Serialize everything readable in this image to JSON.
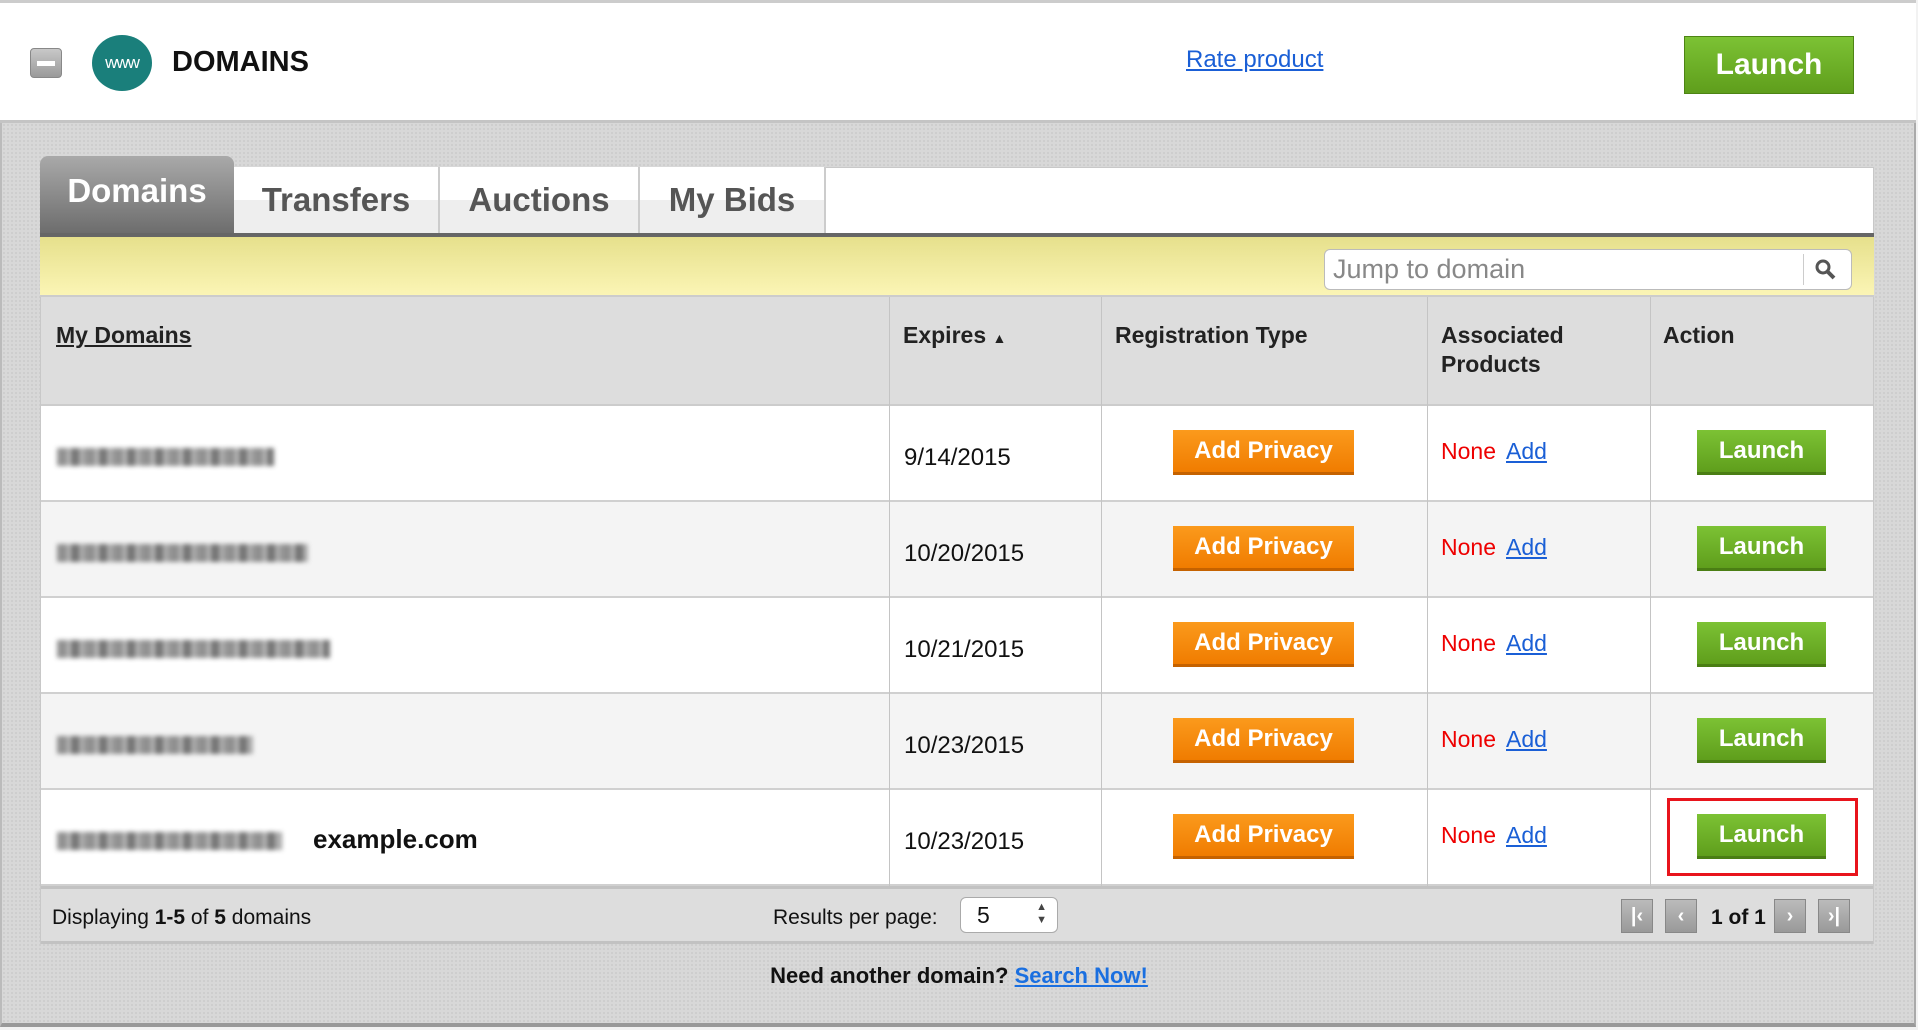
{
  "header": {
    "title": "DOMAINS",
    "logo_text": "www",
    "rate_link": "Rate product",
    "launch_label": "Launch"
  },
  "tabs": [
    {
      "label": "Domains",
      "active": true
    },
    {
      "label": "Transfers"
    },
    {
      "label": "Auctions"
    },
    {
      "label": "My Bids"
    }
  ],
  "search": {
    "placeholder": "Jump to domain"
  },
  "table": {
    "columns": [
      "My Domains",
      "Expires",
      "Registration Type",
      "Associated Products",
      "Action"
    ],
    "sort": {
      "column": "Expires",
      "direction": "ascending"
    },
    "rows": [
      {
        "domain": "",
        "expires": "9/14/2015",
        "reg_button": "Add Privacy",
        "products": "None",
        "add": "Add",
        "action": "Launch"
      },
      {
        "domain": "",
        "expires": "10/20/2015",
        "reg_button": "Add Privacy",
        "products": "None",
        "add": "Add",
        "action": "Launch"
      },
      {
        "domain": "",
        "expires": "10/21/2015",
        "reg_button": "Add Privacy",
        "products": "None",
        "add": "Add",
        "action": "Launch"
      },
      {
        "domain": "",
        "expires": "10/23/2015",
        "reg_button": "Add Privacy",
        "products": "None",
        "add": "Add",
        "action": "Launch"
      },
      {
        "domain": "example.com",
        "expires": "10/23/2015",
        "reg_button": "Add Privacy",
        "products": "None",
        "add": "Add",
        "action": "Launch",
        "highlighted": true
      }
    ]
  },
  "footer": {
    "displaying_prefix": "Displaying ",
    "range": "1-5",
    "of": " of ",
    "total": "5",
    "suffix": " domains",
    "results_label": "Results per page:",
    "results_value": "5",
    "page_info": "1 of 1"
  },
  "bottom": {
    "text": "Need another domain? ",
    "link": "Search Now!"
  },
  "colors": {
    "launch_green": "#6cb026",
    "privacy_orange": "#f5880c",
    "highlight_red": "#e8141c",
    "link_blue": "#1a5fd6",
    "none_red": "#e00000"
  }
}
